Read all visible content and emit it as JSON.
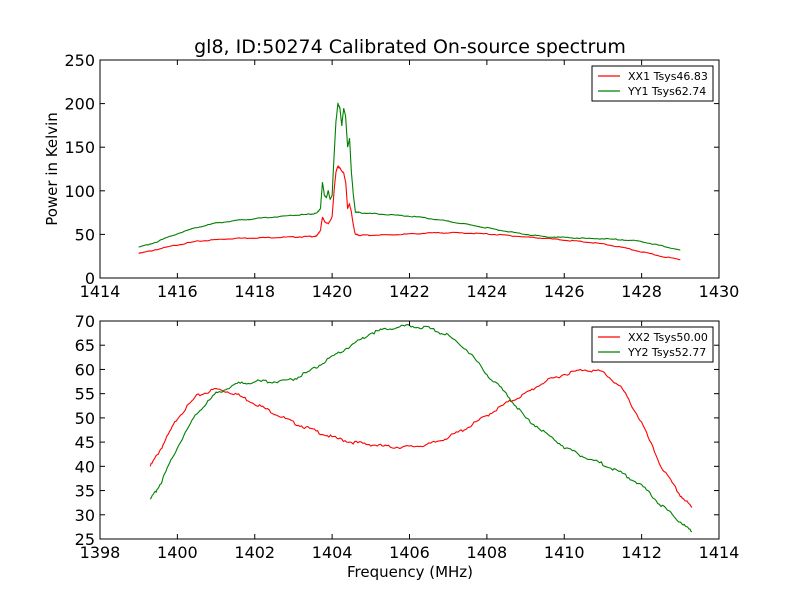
{
  "title": "gl8, ID:50274 Calibrated On-source spectrum",
  "colors": {
    "red": "#ff0000",
    "green": "#008000"
  },
  "chart_data": [
    {
      "type": "line",
      "ylabel": "Power in Kelvin",
      "xlabel": "",
      "xlim": [
        1414,
        1430
      ],
      "ylim": [
        0,
        250
      ],
      "x_ticks": [
        "1414",
        "1416",
        "1418",
        "1420",
        "1422",
        "1424",
        "1426",
        "1428",
        "1430"
      ],
      "y_ticks": [
        "0",
        "50",
        "100",
        "150",
        "200",
        "250"
      ],
      "legend_position": "top-right",
      "series": [
        {
          "name": "XX1 Tsys46.83",
          "color": "#ff0000",
          "x": [
            1415.0,
            1415.5,
            1416.0,
            1416.5,
            1417.0,
            1417.5,
            1418.0,
            1418.5,
            1419.0,
            1419.4,
            1419.6,
            1419.7,
            1419.75,
            1419.8,
            1419.9,
            1420.0,
            1420.05,
            1420.1,
            1420.15,
            1420.2,
            1420.3,
            1420.35,
            1420.4,
            1420.45,
            1420.5,
            1420.55,
            1420.6,
            1420.7,
            1421.0,
            1421.5,
            1422.0,
            1422.5,
            1423.0,
            1423.5,
            1424.0,
            1424.5,
            1425.0,
            1425.5,
            1426.0,
            1426.5,
            1427.0,
            1427.5,
            1428.0,
            1428.5,
            1429.0
          ],
          "y": [
            28,
            33,
            38,
            42,
            44,
            45.5,
            46,
            46.5,
            47,
            47.5,
            48,
            55,
            70,
            65,
            62,
            70,
            100,
            122,
            128,
            126,
            120,
            110,
            80,
            85,
            75,
            60,
            50,
            49,
            49,
            49.5,
            50.5,
            51.5,
            52,
            51.5,
            50.5,
            49,
            47,
            45.5,
            43.5,
            41.5,
            39,
            35,
            30,
            25,
            21
          ]
        },
        {
          "name": "YY1 Tsys62.74",
          "color": "#008000",
          "x": [
            1415.0,
            1415.5,
            1416.0,
            1416.5,
            1417.0,
            1417.5,
            1418.0,
            1418.5,
            1419.0,
            1419.4,
            1419.6,
            1419.7,
            1419.75,
            1419.8,
            1419.85,
            1419.9,
            1419.95,
            1420.0,
            1420.05,
            1420.1,
            1420.15,
            1420.2,
            1420.25,
            1420.3,
            1420.35,
            1420.4,
            1420.45,
            1420.5,
            1420.55,
            1420.6,
            1420.7,
            1421.0,
            1421.5,
            1422.0,
            1422.5,
            1423.0,
            1423.5,
            1424.0,
            1424.5,
            1425.0,
            1425.5,
            1426.0,
            1426.5,
            1427.0,
            1427.5,
            1428.0,
            1428.5,
            1429.0
          ],
          "y": [
            35,
            42,
            51,
            58,
            63,
            66,
            68,
            70,
            72,
            73,
            74,
            80,
            110,
            95,
            92,
            100,
            90,
            95,
            140,
            180,
            200,
            195,
            175,
            195,
            185,
            150,
            160,
            120,
            95,
            76,
            75,
            74,
            72.5,
            71,
            68.5,
            65,
            61.5,
            57.5,
            53.5,
            50,
            47.5,
            46.5,
            45.5,
            45,
            44,
            42,
            37,
            32
          ]
        }
      ]
    },
    {
      "type": "line",
      "xlabel": "Frequency (MHz)",
      "ylabel": "",
      "xlim": [
        1398,
        1414
      ],
      "ylim": [
        25,
        70
      ],
      "x_ticks": [
        "1398",
        "1400",
        "1402",
        "1404",
        "1406",
        "1408",
        "1410",
        "1412",
        "1414"
      ],
      "y_ticks": [
        "25",
        "30",
        "35",
        "40",
        "45",
        "50",
        "55",
        "60",
        "65",
        "70"
      ],
      "legend_position": "top-right",
      "series": [
        {
          "name": "XX2 Tsys50.00",
          "color": "#ff0000",
          "x": [
            1399.3,
            1399.6,
            1400.0,
            1400.5,
            1401.0,
            1401.5,
            1402.0,
            1402.5,
            1403.0,
            1403.5,
            1404.0,
            1404.5,
            1405.0,
            1405.5,
            1406.0,
            1406.5,
            1407.0,
            1407.5,
            1408.0,
            1408.5,
            1409.0,
            1409.5,
            1410.0,
            1410.5,
            1411.0,
            1411.5,
            1412.0,
            1412.5,
            1413.0,
            1413.3
          ],
          "y": [
            40,
            44,
            50,
            54.5,
            56,
            55,
            53,
            51,
            49,
            47.5,
            46,
            45,
            44.5,
            44,
            44,
            44.5,
            46,
            48,
            50.5,
            53,
            55,
            57.5,
            59,
            60,
            59.5,
            56,
            49,
            40,
            34,
            31.5
          ]
        },
        {
          "name": "YY2 Tsys52.77",
          "color": "#008000",
          "x": [
            1399.3,
            1399.6,
            1400.0,
            1400.5,
            1401.0,
            1401.5,
            1402.0,
            1402.5,
            1403.0,
            1403.5,
            1404.0,
            1404.5,
            1405.0,
            1405.5,
            1406.0,
            1406.5,
            1407.0,
            1407.5,
            1408.0,
            1408.5,
            1409.0,
            1409.5,
            1410.0,
            1410.5,
            1411.0,
            1411.5,
            1412.0,
            1412.5,
            1413.0,
            1413.3
          ],
          "y": [
            33,
            37,
            44,
            51,
            55,
            57,
            57.5,
            57.5,
            58,
            60,
            62.5,
            65,
            67.5,
            68.5,
            69,
            68.5,
            67,
            64,
            59,
            55,
            50,
            47,
            44,
            42,
            40.5,
            38.5,
            36,
            32,
            28.5,
            26.5
          ]
        }
      ]
    }
  ]
}
